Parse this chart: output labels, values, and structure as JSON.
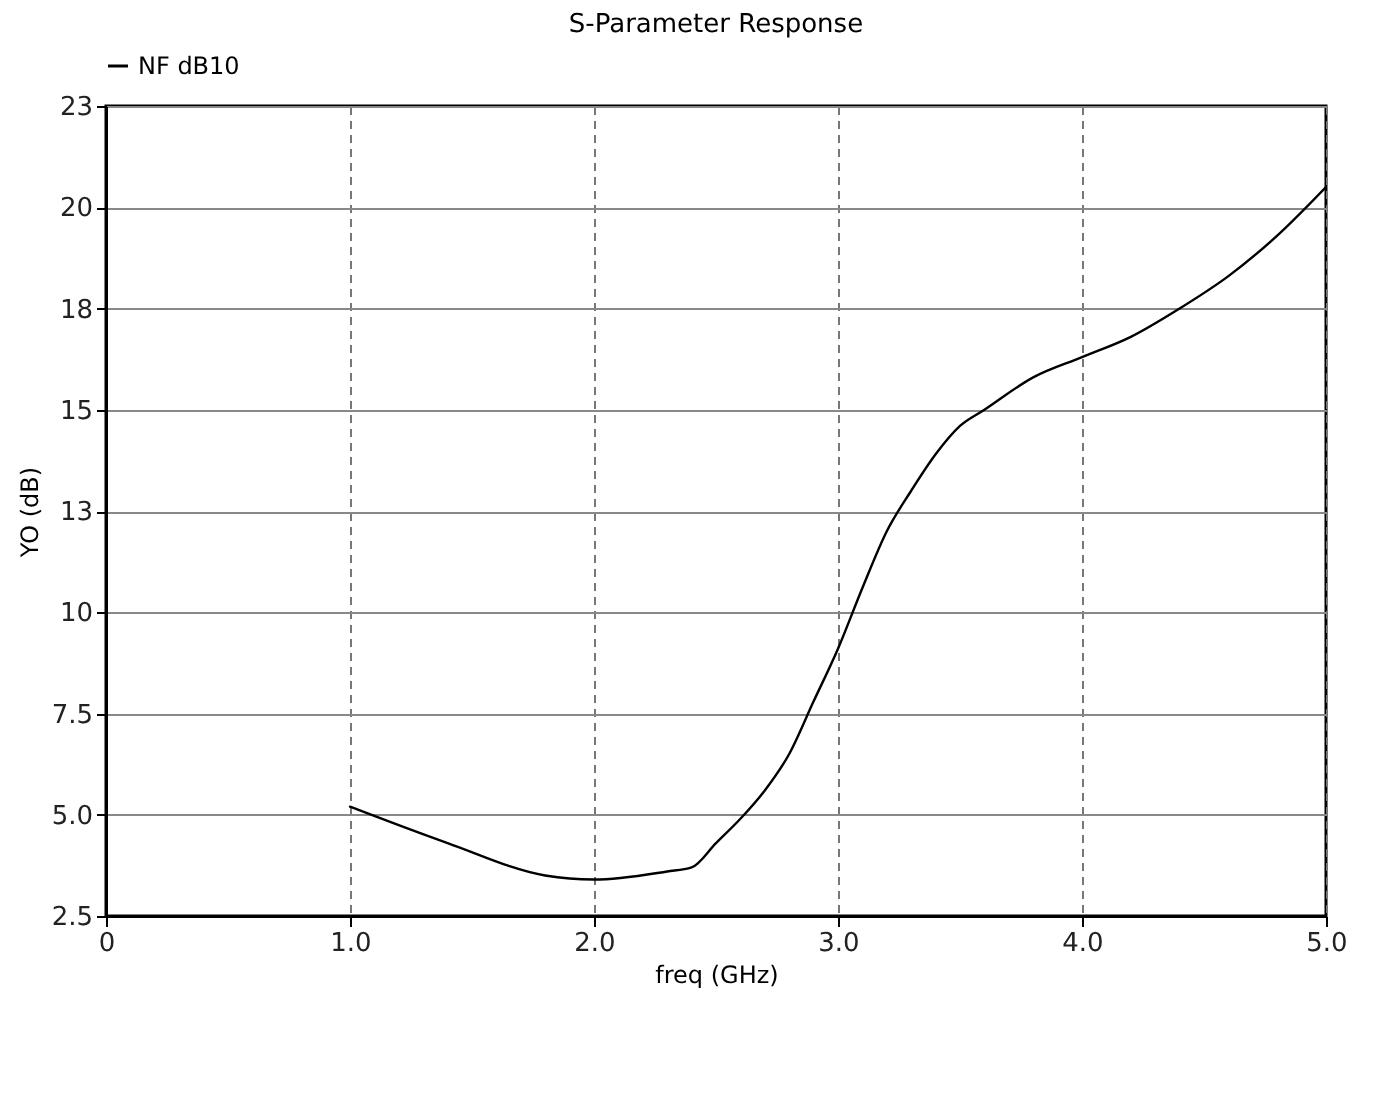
{
  "chart_data": {
    "type": "line",
    "title": "S-Parameter Response",
    "xlabel": "freq (GHz)",
    "ylabel": "YO (dB)",
    "series": [
      {
        "name": "NF dB10",
        "color": "#000000",
        "x": [
          1.0,
          1.4,
          1.8,
          2.0,
          2.3,
          2.4,
          2.5,
          2.6,
          2.7,
          2.8,
          2.9,
          3.0,
          3.1,
          3.2,
          3.3,
          3.4,
          3.5,
          3.6,
          3.8,
          4.0,
          4.2,
          4.4,
          4.6,
          4.8,
          5.0
        ],
        "values": [
          5.2,
          4.3,
          3.5,
          3.4,
          3.6,
          3.7,
          4.3,
          4.9,
          5.6,
          6.5,
          7.8,
          9.1,
          10.6,
          12.0,
          13.0,
          13.9,
          14.6,
          15.0,
          15.8,
          16.3,
          16.8,
          17.5,
          18.3,
          19.3,
          20.5
        ]
      }
    ],
    "xlim": [
      0,
      5
    ],
    "xticks": [
      0,
      {
        "value": 1,
        "label": "1.0"
      },
      {
        "value": 2,
        "label": "2.0"
      },
      {
        "value": 3,
        "label": "3.0"
      },
      {
        "value": 4,
        "label": "4.0"
      },
      {
        "value": 5,
        "label": "5.0"
      }
    ],
    "ylim": [
      2.5,
      22.5
    ],
    "yticks": [
      2.5,
      {
        "value": 5,
        "label": "5.0"
      },
      7.5,
      10,
      {
        "value": 12.5,
        "label": "13"
      },
      15,
      {
        "value": 17.5,
        "label": "18"
      },
      20,
      {
        "value": 22.5,
        "label": "23"
      }
    ],
    "grid": true,
    "legend": "top left",
    "line_style": "solid",
    "marker": "none"
  }
}
